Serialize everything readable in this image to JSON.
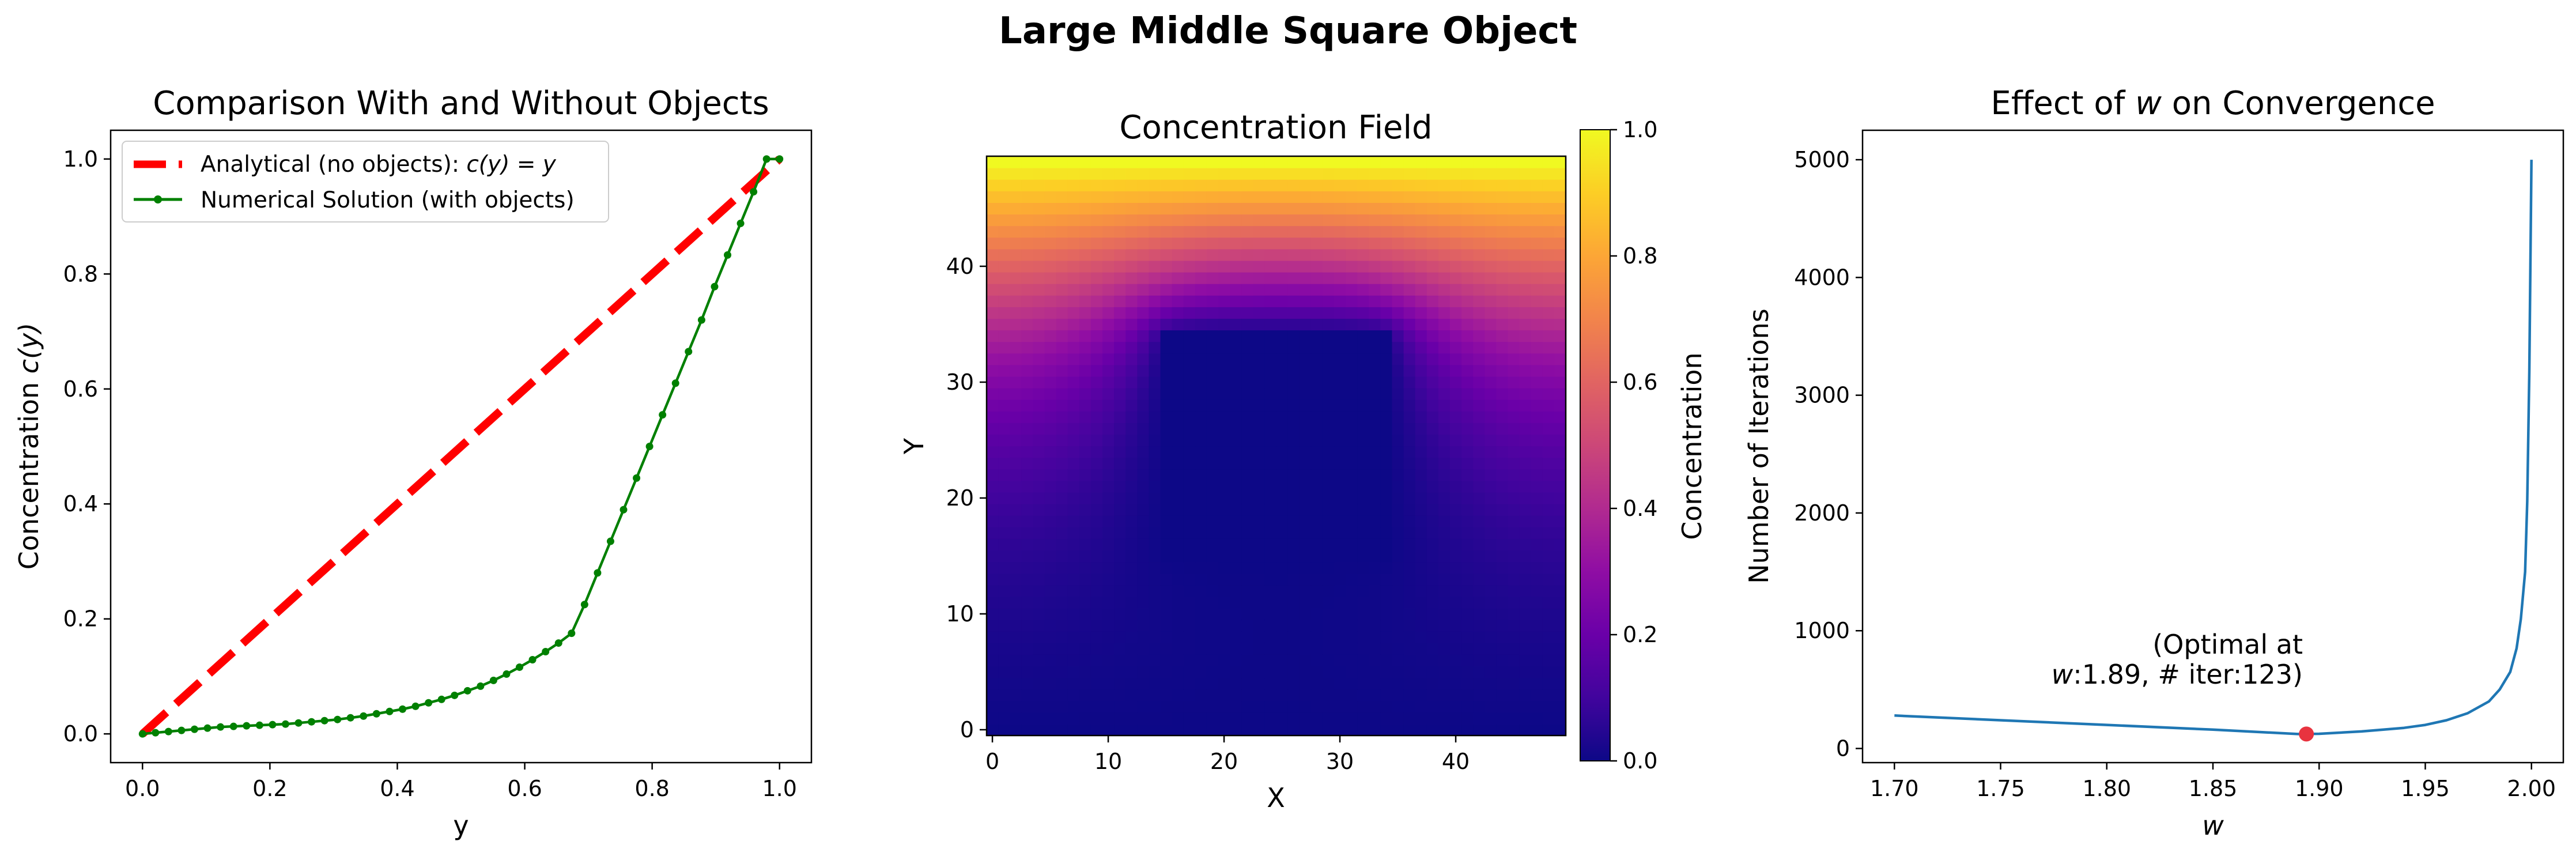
{
  "suptitle": "Large Middle Square Object",
  "colors": {
    "analytical": "#ff0000",
    "numerical": "#008000",
    "convergence": "#1f77b4",
    "optimal_marker": "#e8333f"
  },
  "panel1": {
    "title": "Comparison With and Without Objects",
    "xlabel": "y",
    "ylabel_main": "Concentration ",
    "ylabel_math": "c(y)",
    "xticks": [
      "0.0",
      "0.2",
      "0.4",
      "0.6",
      "0.8",
      "1.0"
    ],
    "yticks": [
      "0.0",
      "0.2",
      "0.4",
      "0.6",
      "0.8",
      "1.0"
    ],
    "legend": {
      "analytical": "Analytical (no objects): ",
      "analytical_math": "c(y) = y",
      "numerical": "Numerical Solution (with objects)"
    }
  },
  "panel2": {
    "title": "Concentration Field",
    "xlabel": "X",
    "ylabel": "Y",
    "xticks": [
      "0",
      "10",
      "20",
      "30",
      "40"
    ],
    "yticks": [
      "0",
      "10",
      "20",
      "30",
      "40"
    ],
    "colorbar_label": "Concentration",
    "colorbar_ticks": [
      "0.0",
      "0.2",
      "0.4",
      "0.6",
      "0.8",
      "1.0"
    ]
  },
  "panel3": {
    "title_pre": "Effect of ",
    "title_math": "w",
    "title_post": " on Convergence",
    "xlabel": "w",
    "ylabel": "Number of Iterations",
    "xticks": [
      "1.70",
      "1.75",
      "1.80",
      "1.85",
      "1.90",
      "1.95",
      "2.00"
    ],
    "yticks": [
      "0",
      "1000",
      "2000",
      "3000",
      "4000",
      "5000"
    ],
    "annotation_line1": "(Optimal at",
    "annotation_line2_math": "w",
    "annotation_line2": ":1.89, # iter:123)"
  },
  "chart_data": [
    {
      "type": "line",
      "title": "Comparison With and Without Objects",
      "xlabel": "y",
      "ylabel": "Concentration c(y)",
      "xlim": [
        -0.05,
        1.05
      ],
      "ylim": [
        -0.05,
        1.05
      ],
      "legend_position": "upper-left",
      "series": [
        {
          "name": "Analytical (no objects): c(y) = y",
          "style": "dashed",
          "x": [
            0,
            1
          ],
          "y": [
            0,
            1
          ]
        },
        {
          "name": "Numerical Solution (with objects)",
          "style": "line-with-markers",
          "x": [
            0.0,
            0.0204,
            0.0408,
            0.0612,
            0.0816,
            0.102,
            0.1224,
            0.1429,
            0.1633,
            0.1837,
            0.2041,
            0.2245,
            0.2449,
            0.2653,
            0.2857,
            0.3061,
            0.3265,
            0.3469,
            0.3673,
            0.3878,
            0.4082,
            0.4286,
            0.449,
            0.4694,
            0.4898,
            0.5102,
            0.5306,
            0.551,
            0.5714,
            0.5918,
            0.6122,
            0.6327,
            0.6531,
            0.6735,
            0.6939,
            0.7143,
            0.7347,
            0.7551,
            0.7755,
            0.7959,
            0.8163,
            0.8367,
            0.8571,
            0.8776,
            0.898,
            0.9184,
            0.9388,
            0.9592,
            0.9796,
            1.0
          ],
          "y": [
            0.0,
            0.002,
            0.004,
            0.006,
            0.008,
            0.01,
            0.012,
            0.013,
            0.014,
            0.015,
            0.016,
            0.017,
            0.019,
            0.021,
            0.023,
            0.025,
            0.028,
            0.031,
            0.035,
            0.039,
            0.043,
            0.048,
            0.054,
            0.06,
            0.067,
            0.075,
            0.083,
            0.093,
            0.104,
            0.116,
            0.129,
            0.143,
            0.158,
            0.175,
            0.225,
            0.28,
            0.335,
            0.39,
            0.445,
            0.5,
            0.555,
            0.61,
            0.665,
            0.72,
            0.778,
            0.833,
            0.888,
            0.943,
            1.0,
            1.0
          ]
        }
      ]
    },
    {
      "type": "heatmap",
      "title": "Concentration Field",
      "xlabel": "X",
      "ylabel": "Y",
      "xlim": [
        0,
        49
      ],
      "ylim": [
        0,
        49
      ],
      "colormap": "plasma",
      "colorbar_label": "Concentration",
      "colorbar_range": [
        0.0,
        1.0
      ],
      "object": {
        "x_range": [
          15,
          34
        ],
        "y_range": [
          15,
          34
        ],
        "value": 0.0
      },
      "top_boundary_value": 1.0
    },
    {
      "type": "line",
      "title": "Effect of w on Convergence",
      "xlabel": "w",
      "ylabel": "Number of Iterations",
      "xlim": [
        1.685,
        2.015
      ],
      "ylim": [
        -120,
        5250
      ],
      "series": [
        {
          "name": "",
          "x": [
            1.7,
            1.75,
            1.8,
            1.85,
            1.89,
            1.9,
            1.92,
            1.94,
            1.95,
            1.96,
            1.97,
            1.98,
            1.985,
            1.99,
            1.993,
            1.995,
            1.997,
            1.998,
            1.999,
            2.0
          ],
          "y": [
            280,
            240,
            200,
            160,
            123,
            125,
            145,
            175,
            200,
            240,
            300,
            400,
            500,
            650,
            850,
            1100,
            1500,
            2100,
            3200,
            5000
          ]
        }
      ],
      "optimal_point": {
        "x": 1.894,
        "y": 123
      }
    }
  ]
}
